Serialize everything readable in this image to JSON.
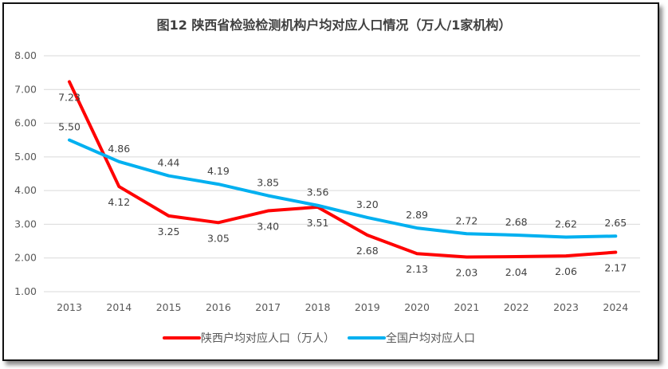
{
  "chart_data": {
    "type": "line",
    "title": "图12  陕西省检验检测机构户均对应人口情况（万人/1家机构）",
    "categories": [
      "2013",
      "2014",
      "2015",
      "2016",
      "2017",
      "2018",
      "2019",
      "2020",
      "2021",
      "2022",
      "2023",
      "2024"
    ],
    "ylim": [
      1,
      8
    ],
    "yticks": [
      "1.00",
      "2.00",
      "3.00",
      "4.00",
      "5.00",
      "6.00",
      "7.00",
      "8.00"
    ],
    "grid": true,
    "legend_position": "bottom",
    "series": [
      {
        "name": "陕西户均对应人口（万人）",
        "color": "#ff0000",
        "values": [
          7.23,
          4.12,
          3.25,
          3.05,
          3.4,
          3.51,
          2.68,
          2.13,
          2.03,
          2.04,
          2.06,
          2.17
        ]
      },
      {
        "name": "全国户均对应人口",
        "color": "#00b0f0",
        "values": [
          5.5,
          4.86,
          4.44,
          4.19,
          3.85,
          3.56,
          3.2,
          2.89,
          2.72,
          2.68,
          2.62,
          2.65
        ]
      }
    ]
  }
}
